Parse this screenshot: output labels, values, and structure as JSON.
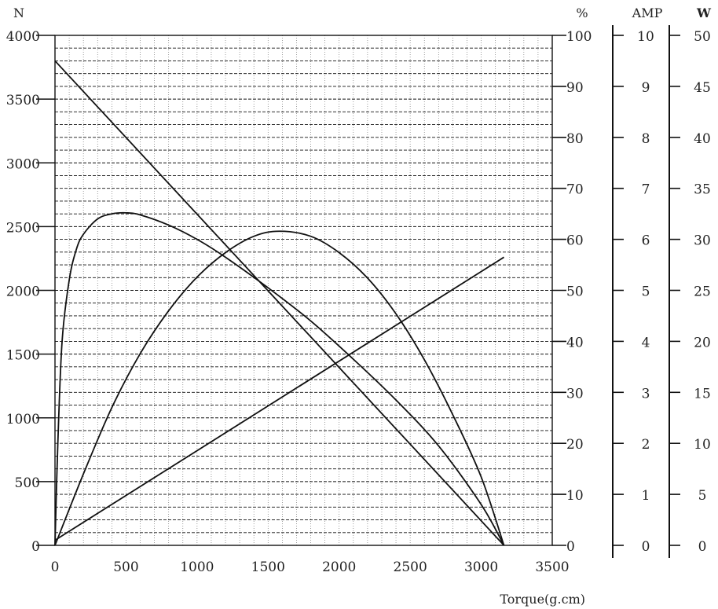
{
  "chart_data": {
    "type": "line",
    "title": "",
    "xlabel": "Torque(g.cm)",
    "x_ticks": [
      "0",
      "500",
      "1000",
      "1500",
      "2000",
      "2500",
      "3000",
      "3500"
    ],
    "xlim": [
      0,
      3500
    ],
    "grid": true,
    "axes": [
      {
        "id": "speed",
        "unit": "N",
        "side": "left",
        "range": [
          0,
          4000
        ],
        "ticks": [
          "0",
          "500",
          "1000",
          "1500",
          "2000",
          "2500",
          "3000",
          "3500",
          "4000"
        ]
      },
      {
        "id": "efficiency",
        "unit": "%",
        "side": "right",
        "range": [
          0,
          100
        ],
        "ticks": [
          "0",
          "10",
          "20",
          "30",
          "40",
          "50",
          "60",
          "70",
          "80",
          "90",
          "100"
        ]
      },
      {
        "id": "current",
        "unit": "AMP",
        "side": "right",
        "range": [
          0,
          10
        ],
        "ticks": [
          "0",
          "1",
          "2",
          "3",
          "4",
          "5",
          "6",
          "7",
          "8",
          "9",
          "10"
        ]
      },
      {
        "id": "power",
        "unit": "W",
        "side": "right",
        "range": [
          0,
          50
        ],
        "ticks": [
          "0",
          "5",
          "10",
          "15",
          "20",
          "25",
          "30",
          "35",
          "40",
          "45",
          "50"
        ]
      }
    ],
    "series": [
      {
        "axis": "speed",
        "style": "line",
        "x": [
          0,
          3160
        ],
        "y": [
          3800,
          0
        ]
      },
      {
        "axis": "current",
        "style": "line",
        "x": [
          0,
          3160
        ],
        "y": [
          0.1,
          5.65
        ]
      },
      {
        "axis": "efficiency",
        "style": "curve",
        "x": [
          0,
          20,
          50,
          100,
          150,
          200,
          300,
          400,
          500,
          600,
          800,
          1000,
          1200,
          1500,
          1800,
          2100,
          2400,
          2700,
          3000,
          3160
        ],
        "y": [
          0,
          20,
          40,
          52,
          58,
          61,
          64,
          65,
          65.2,
          64.8,
          62.8,
          60,
          56.5,
          50.5,
          44,
          36.5,
          28.5,
          19.5,
          8,
          0
        ]
      },
      {
        "axis": "power",
        "style": "curve",
        "x": [
          0,
          200,
          400,
          600,
          800,
          1000,
          1200,
          1400,
          1580,
          1800,
          2000,
          2200,
          2400,
          2600,
          2800,
          3000,
          3160
        ],
        "y": [
          0,
          7,
          13.5,
          18.8,
          23,
          26.3,
          28.7,
          30.3,
          30.8,
          30.3,
          28.7,
          26.2,
          22.7,
          18.2,
          12.8,
          6.7,
          0
        ]
      }
    ]
  }
}
